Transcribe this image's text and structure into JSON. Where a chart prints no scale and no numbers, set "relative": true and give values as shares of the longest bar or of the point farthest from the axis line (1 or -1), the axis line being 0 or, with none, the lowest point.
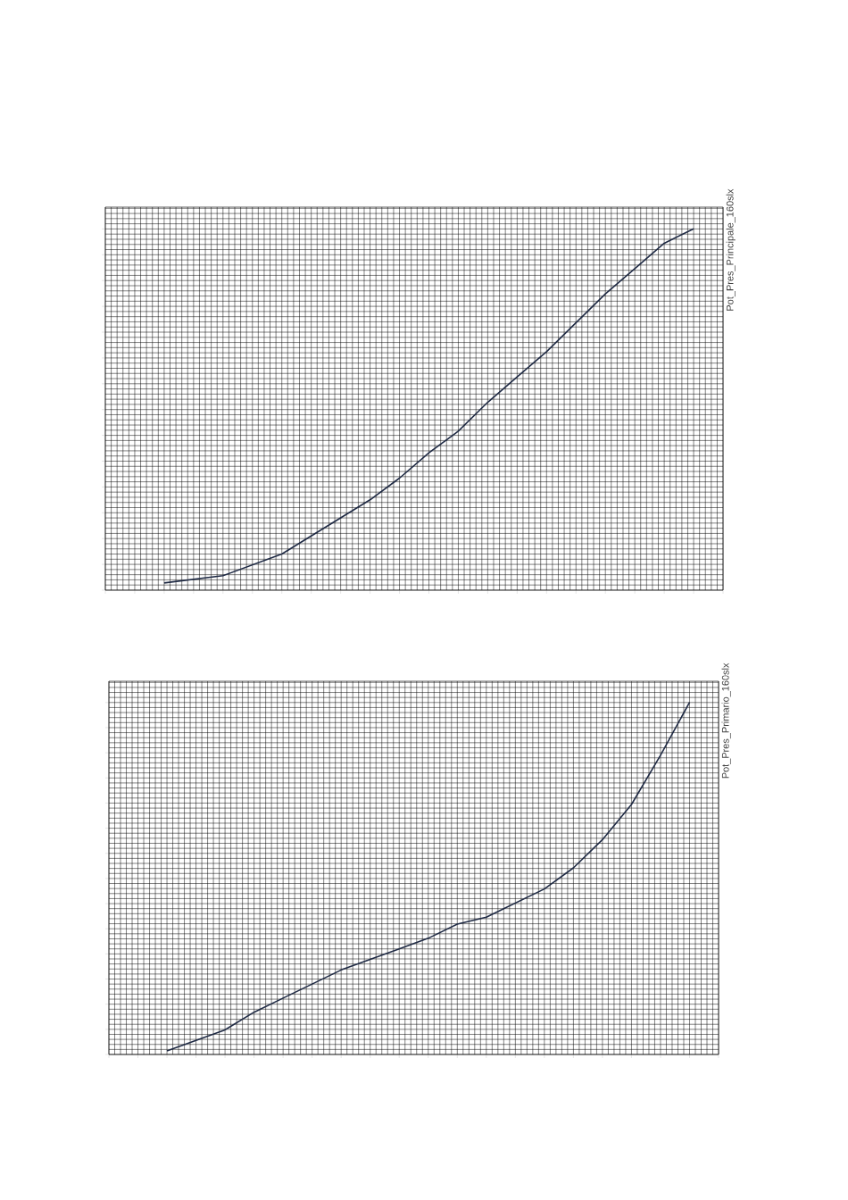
{
  "chart_data": [
    {
      "type": "line",
      "title": "Pot_Pres_Principale_160slx",
      "relative": true,
      "grid": true,
      "categories": [
        null,
        null,
        null,
        null,
        null,
        null,
        null,
        null,
        null,
        null,
        null,
        null,
        null,
        null,
        null,
        null,
        null,
        null,
        null,
        null,
        null,
        null
      ],
      "series": [
        {
          "color": "#1f2a44",
          "values": [
            null,
            null,
            0.02,
            0.03,
            0.04,
            0.07,
            0.1,
            0.15,
            0.2,
            0.25,
            0.31,
            0.38,
            0.44,
            0.52,
            0.59,
            0.66,
            0.74,
            0.82,
            0.89,
            0.96,
            1.0,
            null
          ]
        }
      ]
    },
    {
      "type": "line",
      "title": "Pot_Pres_Primario_160slx",
      "relative": true,
      "grid": true,
      "categories": [
        null,
        null,
        null,
        null,
        null,
        null,
        null,
        null,
        null,
        null,
        null,
        null,
        null,
        null,
        null,
        null,
        null,
        null,
        null,
        null,
        null,
        null
      ],
      "series": [
        {
          "color": "#1f2a44",
          "values": [
            null,
            null,
            0.01,
            0.04,
            0.07,
            0.12,
            0.16,
            0.2,
            0.24,
            0.27,
            0.3,
            0.33,
            0.37,
            0.39,
            0.43,
            0.47,
            0.53,
            0.61,
            0.71,
            0.85,
            1.0,
            null
          ]
        }
      ]
    }
  ]
}
